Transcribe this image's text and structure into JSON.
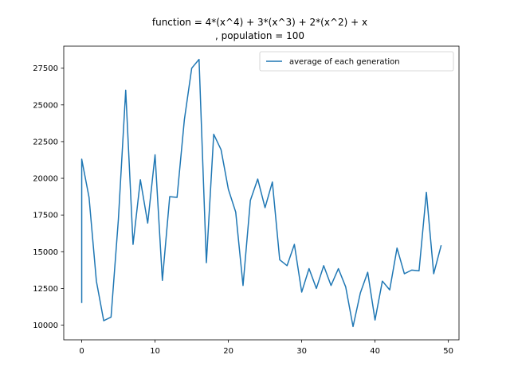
{
  "chart_data": {
    "type": "line",
    "title_line1": "function =  4*(x^4) + 3*(x^3) + 2*(x^2) + x",
    "title_line2": ", population = 100",
    "xlabel": "",
    "ylabel": "",
    "xlim": [
      -2.45,
      51.45
    ],
    "ylim": [
      9000,
      29000
    ],
    "xticks": [
      0,
      10,
      20,
      30,
      40,
      50
    ],
    "yticks": [
      10000,
      12500,
      15000,
      17500,
      20000,
      22500,
      25000,
      27500
    ],
    "grid": false,
    "legend_position": "top-right",
    "series": [
      {
        "name": "average of each generation",
        "color": "#1f77b4",
        "x": [
          0,
          0,
          1,
          2,
          3,
          4,
          5,
          6,
          7,
          8,
          9,
          10,
          11,
          12,
          13,
          14,
          15,
          16,
          17,
          18,
          19,
          20,
          21,
          22,
          23,
          24,
          25,
          26,
          27,
          28,
          29,
          30,
          31,
          32,
          33,
          34,
          35,
          36,
          37,
          38,
          39,
          40,
          41,
          42,
          43,
          44,
          45,
          46,
          47,
          48,
          49
        ],
        "values": [
          11550,
          21300,
          18700,
          13000,
          10300,
          10550,
          17200,
          26000,
          15500,
          19900,
          16950,
          21600,
          13050,
          18750,
          18700,
          24000,
          27500,
          28100,
          14250,
          23000,
          21950,
          19250,
          17700,
          12700,
          18500,
          19950,
          18000,
          19750,
          14450,
          14050,
          15500,
          12250,
          13850,
          12500,
          14050,
          12700,
          13850,
          12600,
          9900,
          12200,
          13600,
          10350,
          13000,
          12400,
          15250,
          13500,
          13750,
          13700,
          19050,
          13500,
          15400
        ]
      }
    ]
  }
}
